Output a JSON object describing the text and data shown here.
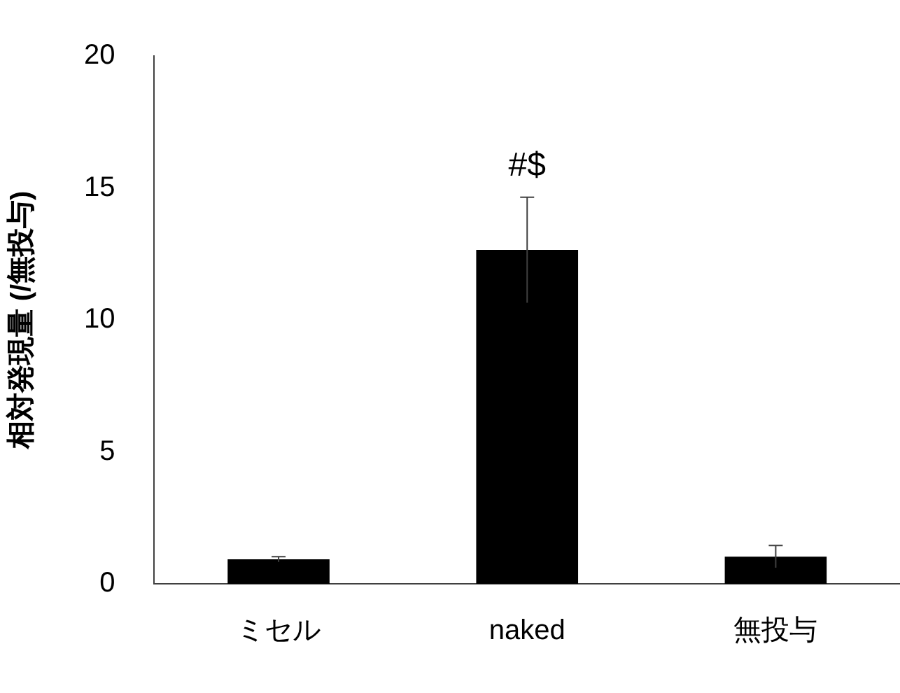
{
  "chart_data": {
    "type": "bar",
    "ylabel": "相対発現量 (/無投与)",
    "categories": [
      "ミセル",
      "naked",
      "無投与"
    ],
    "values": [
      0.93,
      12.65,
      1.03
    ],
    "errors": [
      0.1,
      2.0,
      0.42
    ],
    "color": "#000000",
    "ylim": [
      0,
      20
    ],
    "yticks": [
      0,
      5,
      10,
      15,
      20
    ],
    "grid": false,
    "legend": false,
    "annotations": [
      "#$"
    ]
  }
}
